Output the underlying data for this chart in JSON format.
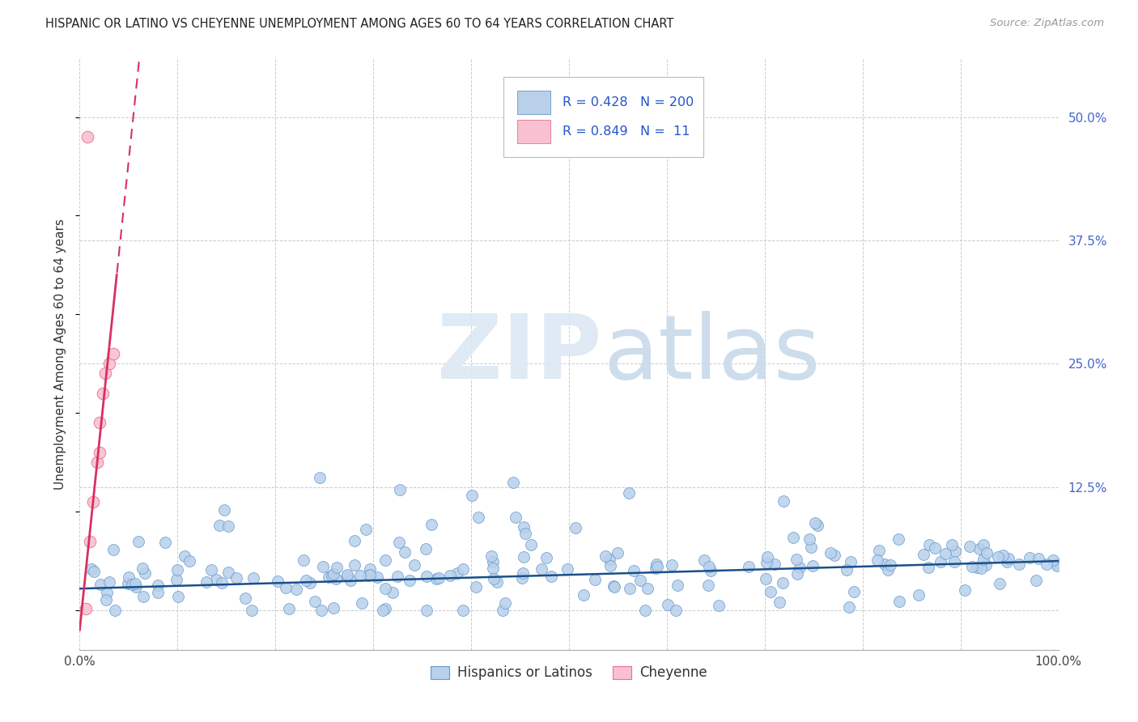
{
  "title": "HISPANIC OR LATINO VS CHEYENNE UNEMPLOYMENT AMONG AGES 60 TO 64 YEARS CORRELATION CHART",
  "source": "Source: ZipAtlas.com",
  "ylabel": "Unemployment Among Ages 60 to 64 years",
  "xlim": [
    0.0,
    1.0
  ],
  "ylim": [
    -0.04,
    0.56
  ],
  "xtick_vals": [
    0.0,
    0.1,
    0.2,
    0.3,
    0.4,
    0.5,
    0.6,
    0.7,
    0.8,
    0.9,
    1.0
  ],
  "xticklabels": [
    "0.0%",
    "",
    "",
    "",
    "",
    "",
    "",
    "",
    "",
    "",
    "100.0%"
  ],
  "ytick_vals": [
    0.0,
    0.125,
    0.25,
    0.375,
    0.5
  ],
  "ytick_labels": [
    "",
    "12.5%",
    "25.0%",
    "37.5%",
    "50.0%"
  ],
  "blue_fill": "#b8d0ea",
  "blue_edge": "#6699cc",
  "pink_fill": "#f8c0d0",
  "pink_edge": "#e87090",
  "blue_line": "#1a4f8a",
  "pink_line": "#d83060",
  "legend_color": "#2255cc",
  "grid_color": "#cccccc",
  "ytick_color": "#4466cc",
  "watermark_zip_color": "#dce8f4",
  "watermark_atlas_color": "#c8daea",
  "line1_slope": 0.028,
  "line1_intercept": 0.022,
  "line2_slope": 9.5,
  "line2_intercept": -0.02
}
